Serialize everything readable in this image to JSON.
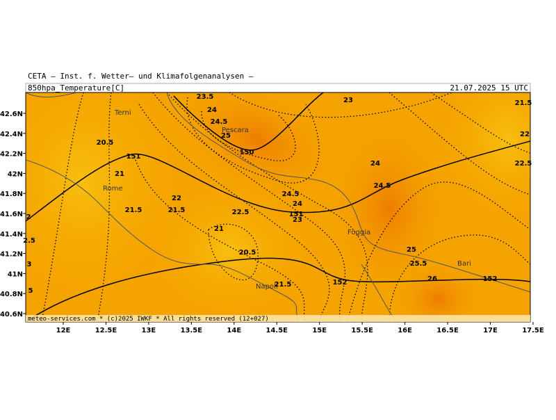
{
  "header": {
    "institute": "CETA – Inst. f. Wetter– und Klimafolgenanalysen –",
    "field": "850hpa_Temperature[C]",
    "valid_time": "21.07.2025 15 UTC"
  },
  "footer": "meteo-services.com * (c)2025 IWKF * All rights reserved (12+027)",
  "x_axis": [
    {
      "value": 12,
      "label": "12E"
    },
    {
      "value": 12.5,
      "label": "12.5E"
    },
    {
      "value": 13,
      "label": "13E"
    },
    {
      "value": 13.5,
      "label": "13.5E"
    },
    {
      "value": 14,
      "label": "14E"
    },
    {
      "value": 14.5,
      "label": "14.5E"
    },
    {
      "value": 15,
      "label": "15E"
    },
    {
      "value": 15.5,
      "label": "15.5E"
    },
    {
      "value": 16,
      "label": "16E"
    },
    {
      "value": 16.5,
      "label": "16.5E"
    },
    {
      "value": 17,
      "label": "17E"
    },
    {
      "value": 17.5,
      "label": "17.5E"
    }
  ],
  "y_axis": [
    {
      "value": 42.6,
      "label": "42.6N"
    },
    {
      "value": 42.4,
      "label": "42.4N"
    },
    {
      "value": 42.2,
      "label": "42.2N"
    },
    {
      "value": 42,
      "label": "42N"
    },
    {
      "value": 41.8,
      "label": "41.8N"
    },
    {
      "value": 41.6,
      "label": "41.6N"
    },
    {
      "value": 41.4,
      "label": "41.4N"
    },
    {
      "value": 41.2,
      "label": "41.2N"
    },
    {
      "value": 41,
      "label": "41N"
    },
    {
      "value": 40.8,
      "label": "40.8N"
    },
    {
      "value": 40.6,
      "label": "40.6N"
    }
  ],
  "cities": [
    "Terni",
    "Pescara",
    "Rome",
    "Foggia",
    "Bari",
    "Napoli"
  ],
  "contour_labels": [
    "23.5",
    "23",
    "21.5",
    "24",
    "24.5",
    "25",
    "22",
    "20.5",
    "151",
    "150",
    "24",
    "22.5",
    "21",
    "24.5",
    "24.5",
    "22",
    "24",
    "21.5",
    "21.5",
    "22.5",
    "151",
    "23",
    "2",
    "21",
    "2.5",
    "25",
    "20.5",
    "25.5",
    "3",
    "152",
    "26",
    "152",
    "21.5",
    "5"
  ]
}
